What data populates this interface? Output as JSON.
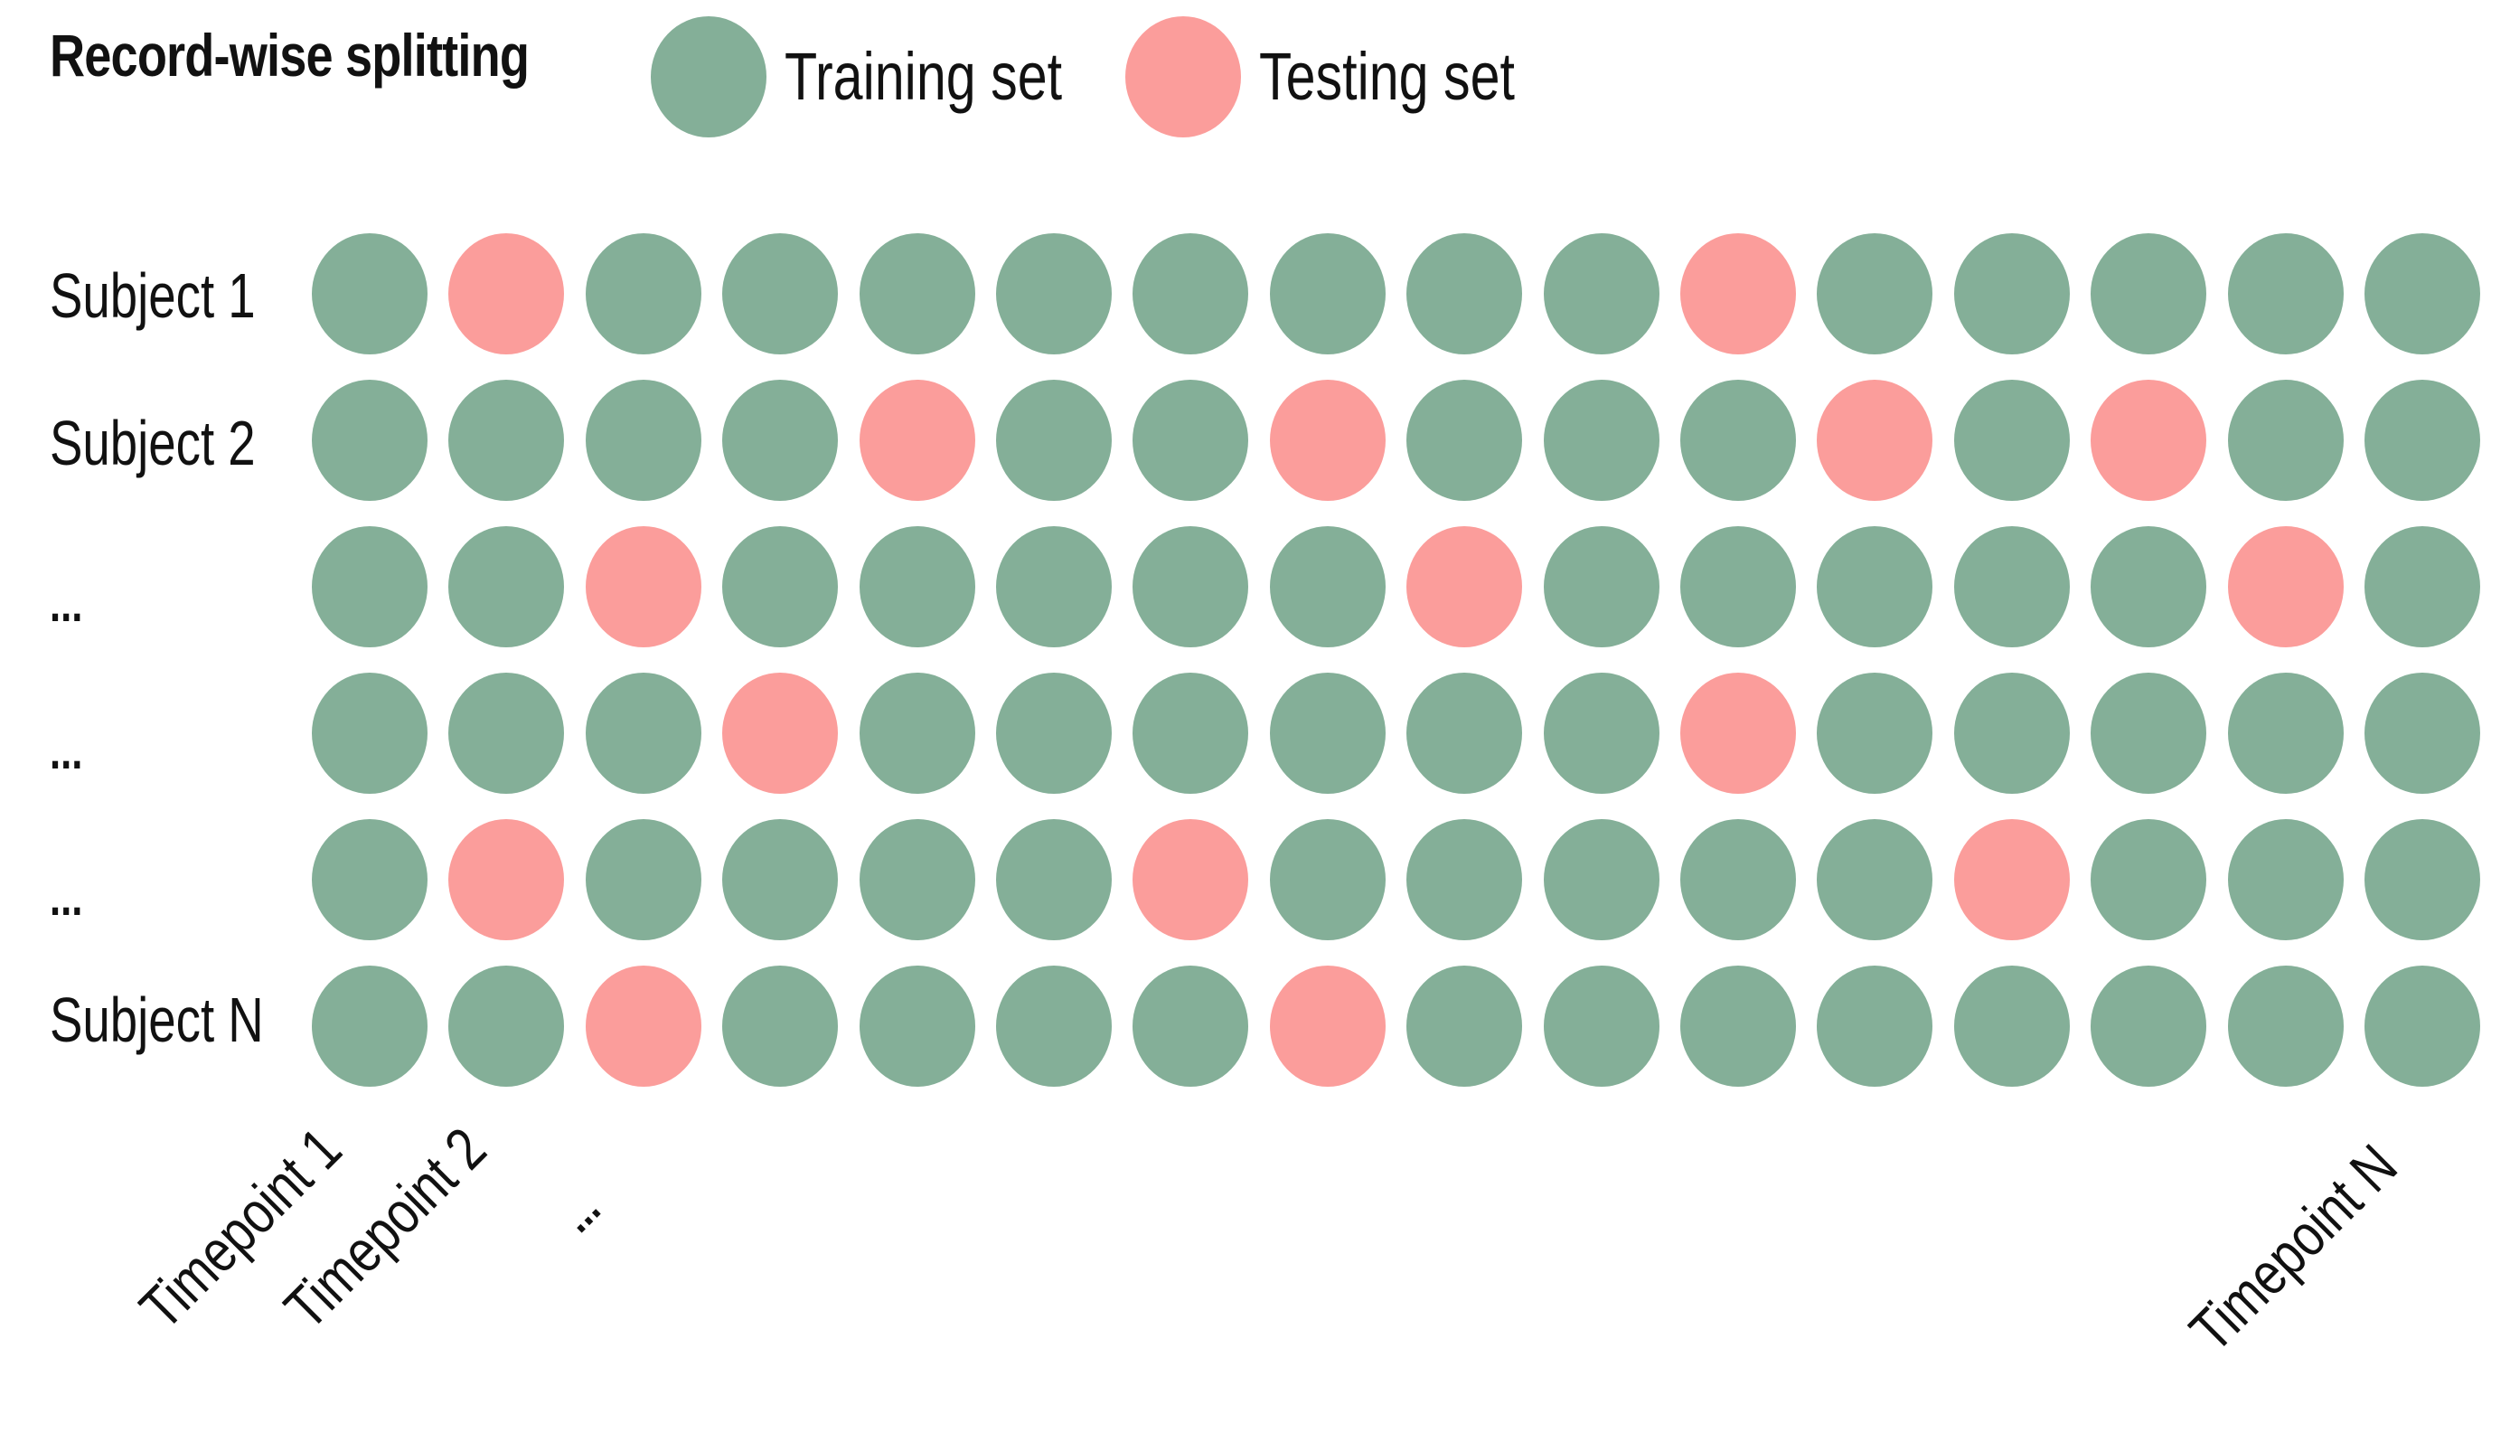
{
  "title": "Record-wise splitting",
  "legend": {
    "train": {
      "label": "Training set",
      "color": "#84AF98"
    },
    "test": {
      "label": "Testing set",
      "color": "#FB9D9B"
    }
  },
  "rows": [
    {
      "label": "Subject 1",
      "pattern": "TSTTTTTTTTSTTTTT"
    },
    {
      "label": "Subject 2",
      "pattern": "TTTTSTTSTTTSTSTT"
    },
    {
      "label": "...",
      "pattern": "TTSTTTTTSTTTTTST"
    },
    {
      "label": "...",
      "pattern": "TTTSTTTTTTSTTTTT"
    },
    {
      "label": "...",
      "pattern": "TSTTTTSTTTTTSTTT"
    },
    {
      "label": "Subject N",
      "pattern": "TTSTTTTSTTTTTTTT"
    }
  ],
  "columns": {
    "first": "Timepoint 1",
    "second": "Timepoint 2",
    "ellipsis": "...",
    "last": "Timepoint N"
  },
  "pattern_key": {
    "T": "Training set",
    "S": "Testing set"
  }
}
